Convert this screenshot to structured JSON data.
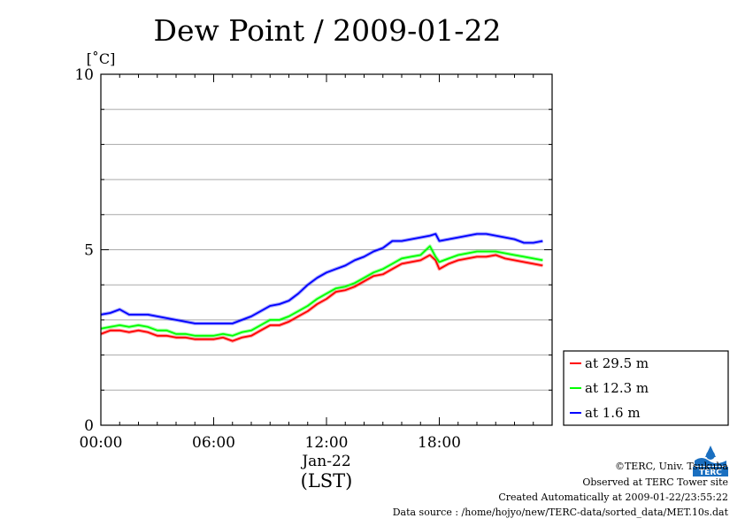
{
  "chart_data": {
    "type": "line",
    "title": "Dew Point / 2009-01-22",
    "ylabel": "[˚C]",
    "ylim": [
      0,
      10
    ],
    "yticks": [
      0,
      5,
      10
    ],
    "xlim": [
      0,
      24
    ],
    "xticks": [
      {
        "value": 0,
        "label": "00:00"
      },
      {
        "value": 6,
        "label": "06:00"
      },
      {
        "value": 12,
        "label": "12:00"
      },
      {
        "value": 18,
        "label": "18:00"
      }
    ],
    "xlabel_date": "Jan-22",
    "xlabel_unit": "(LST)",
    "grid": true,
    "legend_position": "bottom-right, outside plot",
    "series": [
      {
        "name": "at 29.5 m",
        "color": "#ff0000",
        "x": [
          0,
          0.5,
          1,
          1.5,
          2,
          2.5,
          3,
          3.5,
          4,
          4.5,
          5,
          5.5,
          6,
          6.5,
          7,
          7.5,
          8,
          8.5,
          9,
          9.5,
          10,
          10.5,
          11,
          11.5,
          12,
          12.5,
          13,
          13.5,
          14,
          14.5,
          15,
          15.5,
          16,
          16.5,
          17,
          17.5,
          17.8,
          18,
          18.5,
          19,
          19.5,
          20,
          20.5,
          21,
          21.5,
          22,
          22.5,
          23,
          23.5
        ],
        "y": [
          2.6,
          2.7,
          2.7,
          2.65,
          2.7,
          2.65,
          2.55,
          2.55,
          2.5,
          2.5,
          2.45,
          2.45,
          2.45,
          2.5,
          2.4,
          2.5,
          2.55,
          2.7,
          2.85,
          2.85,
          2.95,
          3.1,
          3.25,
          3.45,
          3.6,
          3.8,
          3.85,
          3.95,
          4.1,
          4.25,
          4.3,
          4.45,
          4.6,
          4.65,
          4.7,
          4.85,
          4.7,
          4.45,
          4.6,
          4.7,
          4.75,
          4.8,
          4.8,
          4.85,
          4.75,
          4.7,
          4.65,
          4.6,
          4.55
        ]
      },
      {
        "name": "at 12.3 m",
        "color": "#00ff00",
        "x": [
          0,
          0.5,
          1,
          1.5,
          2,
          2.5,
          3,
          3.5,
          4,
          4.5,
          5,
          5.5,
          6,
          6.5,
          7,
          7.5,
          8,
          8.5,
          9,
          9.5,
          10,
          10.5,
          11,
          11.5,
          12,
          12.5,
          13,
          13.5,
          14,
          14.5,
          15,
          15.5,
          16,
          16.5,
          17,
          17.5,
          17.8,
          18,
          18.5,
          19,
          19.5,
          20,
          20.5,
          21,
          21.5,
          22,
          22.5,
          23,
          23.5
        ],
        "y": [
          2.75,
          2.8,
          2.85,
          2.8,
          2.85,
          2.8,
          2.7,
          2.7,
          2.6,
          2.6,
          2.55,
          2.55,
          2.55,
          2.6,
          2.55,
          2.65,
          2.7,
          2.85,
          3.0,
          3.0,
          3.1,
          3.25,
          3.4,
          3.6,
          3.75,
          3.9,
          3.95,
          4.05,
          4.2,
          4.35,
          4.45,
          4.6,
          4.75,
          4.8,
          4.85,
          5.1,
          4.8,
          4.65,
          4.75,
          4.85,
          4.9,
          4.95,
          4.95,
          4.95,
          4.9,
          4.85,
          4.8,
          4.75,
          4.7
        ]
      },
      {
        "name": "at 1.6 m",
        "color": "#0000ff",
        "x": [
          0,
          0.5,
          1,
          1.5,
          2,
          2.5,
          3,
          3.5,
          4,
          4.5,
          5,
          5.5,
          6,
          6.5,
          7,
          7.5,
          8,
          8.5,
          9,
          9.5,
          10,
          10.5,
          11,
          11.5,
          12,
          12.5,
          13,
          13.5,
          14,
          14.5,
          15,
          15.5,
          16,
          16.5,
          17,
          17.5,
          17.8,
          18,
          18.5,
          19,
          19.5,
          20,
          20.5,
          21,
          21.5,
          22,
          22.5,
          23,
          23.5
        ],
        "y": [
          3.15,
          3.2,
          3.3,
          3.15,
          3.15,
          3.15,
          3.1,
          3.05,
          3.0,
          2.95,
          2.9,
          2.9,
          2.9,
          2.9,
          2.9,
          3.0,
          3.1,
          3.25,
          3.4,
          3.45,
          3.55,
          3.75,
          4.0,
          4.2,
          4.35,
          4.45,
          4.55,
          4.7,
          4.8,
          4.95,
          5.05,
          5.25,
          5.25,
          5.3,
          5.35,
          5.4,
          5.45,
          5.25,
          5.3,
          5.35,
          5.4,
          5.45,
          5.45,
          5.4,
          5.35,
          5.3,
          5.2,
          5.2,
          5.25
        ]
      }
    ]
  },
  "footer": {
    "copyright": "©TERC, Univ. Tsukuba",
    "observed": "Observed at TERC Tower site",
    "created": "Created Automatically at 2009-01-22/23:55:22",
    "source": "Data source : /home/hojyo/new/TERC-data/sorted_data/MET.10s.dat"
  },
  "logo": {
    "text": "TERC",
    "color": "#1a6fc0"
  }
}
